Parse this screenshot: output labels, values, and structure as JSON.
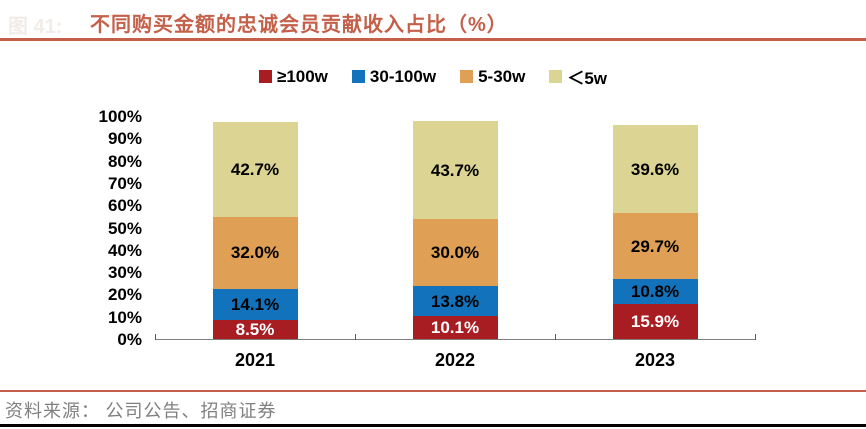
{
  "header": {
    "figure_label": "图 41:",
    "title": "不同购买金额的忠诚会员贡献收入占比（%）"
  },
  "chart_data": {
    "type": "bar",
    "stacked": true,
    "title": "不同购买金额的忠诚会员贡献收入占比（%）",
    "categories": [
      "2021",
      "2022",
      "2023"
    ],
    "series": [
      {
        "name": "≥100w",
        "color": "#a81d22",
        "label_color": "#ffffff",
        "values": [
          8.5,
          10.1,
          15.9
        ]
      },
      {
        "name": "30-100w",
        "color": "#1272bc",
        "label_color": "#000000",
        "values": [
          14.1,
          13.8,
          10.8
        ]
      },
      {
        "name": "5-30w",
        "color": "#df9f55",
        "label_color": "#000000",
        "values": [
          32.0,
          30.0,
          29.7
        ]
      },
      {
        "name": "＜5w",
        "color": "#dcd493",
        "label_color": "#000000",
        "values": [
          42.7,
          43.7,
          39.6
        ]
      }
    ],
    "data_label_suffix": "%",
    "y_ticks": [
      0,
      10,
      20,
      30,
      40,
      50,
      60,
      70,
      80,
      90,
      100
    ],
    "y_tick_suffix": "%",
    "ylim": [
      0,
      100
    ],
    "grid": false,
    "legend_position": "top"
  },
  "footer": {
    "source": "资料来源： 公司公告、招商证券"
  },
  "colors": {
    "accent_rule": "#c4604a",
    "axis_line": "#7f7f7f",
    "source_text": "#808080"
  }
}
